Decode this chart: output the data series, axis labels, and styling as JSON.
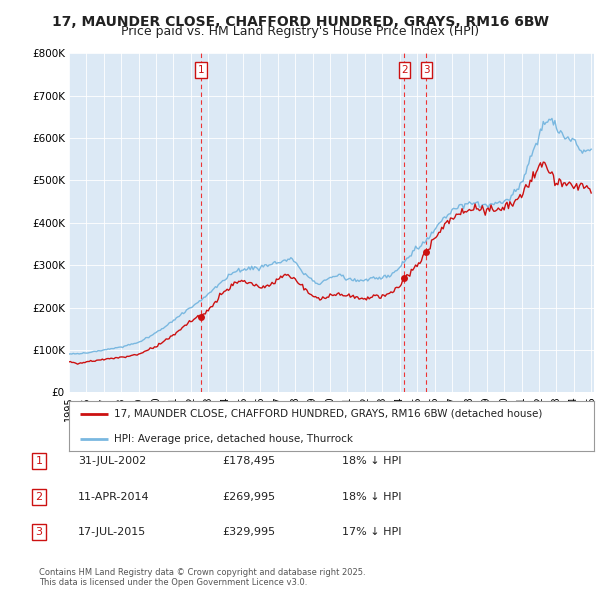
{
  "title": "17, MAUNDER CLOSE, CHAFFORD HUNDRED, GRAYS, RM16 6BW",
  "subtitle": "Price paid vs. HM Land Registry's House Price Index (HPI)",
  "title_fontsize": 10,
  "subtitle_fontsize": 9,
  "background_color": "#ffffff",
  "plot_bg_color": "#dce9f5",
  "grid_color": "#ffffff",
  "ylim": [
    0,
    800000
  ],
  "yticks": [
    0,
    100000,
    200000,
    300000,
    400000,
    500000,
    600000,
    700000,
    800000
  ],
  "ytick_labels": [
    "£0",
    "£100K",
    "£200K",
    "£300K",
    "£400K",
    "£500K",
    "£600K",
    "£700K",
    "£800K"
  ],
  "sale_dates": [
    "2002-07-31",
    "2014-04-11",
    "2015-07-17"
  ],
  "sale_prices": [
    178495,
    269995,
    329995
  ],
  "sale_labels": [
    "1",
    "2",
    "3"
  ],
  "hpi_line_color": "#7ab8e0",
  "price_line_color": "#cc1111",
  "dashed_line_color": "#ee3333",
  "legend_entries": [
    "17, MAUNDER CLOSE, CHAFFORD HUNDRED, GRAYS, RM16 6BW (detached house)",
    "HPI: Average price, detached house, Thurrock"
  ],
  "table_rows": [
    [
      "1",
      "31-JUL-2002",
      "£178,495",
      "18% ↓ HPI"
    ],
    [
      "2",
      "11-APR-2014",
      "£269,995",
      "18% ↓ HPI"
    ],
    [
      "3",
      "17-JUL-2015",
      "£329,995",
      "17% ↓ HPI"
    ]
  ],
  "footer_text": "Contains HM Land Registry data © Crown copyright and database right 2025.\nThis data is licensed under the Open Government Licence v3.0.",
  "xtick_years": [
    1995,
    1996,
    1997,
    1998,
    1999,
    2000,
    2001,
    2002,
    2003,
    2004,
    2005,
    2006,
    2007,
    2008,
    2009,
    2010,
    2011,
    2012,
    2013,
    2014,
    2015,
    2016,
    2017,
    2018,
    2019,
    2020,
    2021,
    2022,
    2023,
    2024,
    2025
  ]
}
